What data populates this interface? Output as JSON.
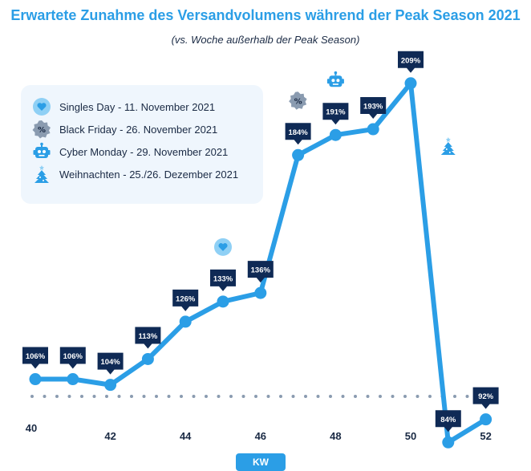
{
  "chart_data": {
    "type": "line",
    "title": "Erwartete Zunahme des Versandvolumens während der Peak Season 2021",
    "subtitle": "(vs. Woche außerhalb der Peak Season)",
    "xlabel": "KW",
    "x": [
      40,
      41,
      42,
      43,
      44,
      45,
      46,
      47,
      48,
      49,
      50,
      51,
      52
    ],
    "x_tick_labels": [
      "40",
      "42",
      "44",
      "46",
      "48",
      "50",
      "52"
    ],
    "series": [
      {
        "values": [
          106,
          106,
          104,
          113,
          126,
          133,
          136,
          184,
          191,
          193,
          209,
          84,
          92
        ],
        "data_labels": [
          "106%",
          "106%",
          "104%",
          "113%",
          "126%",
          "133%",
          "136%",
          "184%",
          "191%",
          "193%",
          "209%",
          "84%",
          "92%"
        ],
        "color": "#2b9ee6"
      }
    ],
    "baseline": {
      "value": 100,
      "style": "dotted"
    },
    "legend": {
      "placement": "top-left",
      "entries": [
        {
          "label": "Singles Day - 11. November 2021",
          "icon": "heart-icon",
          "week": 45
        },
        {
          "label": "Black Friday - 26. November 2021",
          "icon": "percent-badge-icon",
          "week": 47
        },
        {
          "label": "Cyber Monday - 29. November 2021",
          "icon": "robot-icon",
          "week": 48
        },
        {
          "label": "Weihnachten - 25./26. Dezember 2021",
          "icon": "christmas-tree-icon",
          "week": 51
        }
      ]
    },
    "colors": {
      "line": "#2b9ee6",
      "label_bg": "#0f2a55",
      "title": "#2b9ee6",
      "baseline": "#8a9bb0",
      "legend_bg": "#eff6fd"
    }
  }
}
